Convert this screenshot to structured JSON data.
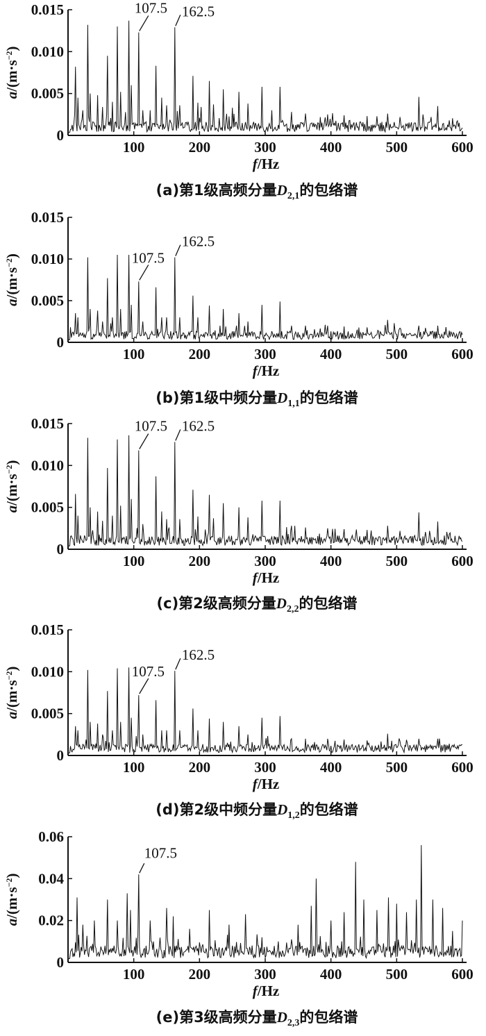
{
  "chart_data": [
    {
      "id": "a",
      "type": "line",
      "caption": "(a)第1级高频分量",
      "caption_symbol": "D",
      "caption_subscript": "2,1",
      "caption_suffix": "的包络谱",
      "xlabel_italic": "f",
      "xlabel_rest": "/Hz",
      "ylabel_italic": "a",
      "ylabel_rest": "/(m·s",
      "ylabel_sup": "−2",
      "ylabel_close": ")",
      "xlim": [
        0,
        600
      ],
      "ylim": [
        0,
        0.015
      ],
      "xticks": [
        "100",
        "200",
        "300",
        "400",
        "500",
        "600"
      ],
      "yticks": [
        "0",
        "0.005",
        "0.010",
        "0.015"
      ],
      "noise_base": 0.0012,
      "noise_amp": 0.0012,
      "peaks": [
        [
          11.5,
          0.0082
        ],
        [
          15,
          0.0045
        ],
        [
          22,
          0.003
        ],
        [
          30,
          0.0132
        ],
        [
          34,
          0.005
        ],
        [
          45,
          0.0048
        ],
        [
          53,
          0.0034
        ],
        [
          60,
          0.0095
        ],
        [
          67,
          0.004
        ],
        [
          75,
          0.013
        ],
        [
          80,
          0.0052
        ],
        [
          92,
          0.0137
        ],
        [
          96,
          0.006
        ],
        [
          107.5,
          0.0123
        ],
        [
          114,
          0.003
        ],
        [
          125,
          0.003
        ],
        [
          134,
          0.0083
        ],
        [
          142,
          0.0045
        ],
        [
          150,
          0.0036
        ],
        [
          162.5,
          0.0129
        ],
        [
          170,
          0.0036
        ],
        [
          190,
          0.0071
        ],
        [
          197,
          0.0039
        ],
        [
          203,
          0.0034
        ],
        [
          215,
          0.0065
        ],
        [
          221,
          0.0037
        ],
        [
          236,
          0.0055
        ],
        [
          250,
          0.0033
        ],
        [
          260,
          0.0052
        ],
        [
          274,
          0.0038
        ],
        [
          295,
          0.0058
        ],
        [
          310,
          0.003
        ],
        [
          323,
          0.0058
        ],
        [
          340,
          0.0028
        ],
        [
          361,
          0.0026
        ],
        [
          395,
          0.0025
        ],
        [
          420,
          0.0024
        ],
        [
          455,
          0.0023
        ],
        [
          486,
          0.0026
        ],
        [
          505,
          0.0022
        ],
        [
          534,
          0.0046
        ],
        [
          540,
          0.0025
        ],
        [
          563,
          0.0035
        ],
        [
          580,
          0.0018
        ],
        [
          595,
          0.0015
        ]
      ],
      "annotations": [
        {
          "x": 107.5,
          "text": "107.5"
        },
        {
          "x": 162.5,
          "text": "162.5"
        }
      ]
    },
    {
      "id": "b",
      "type": "line",
      "caption": "(b)第1级中频分量",
      "caption_symbol": "D",
      "caption_subscript": "1,1",
      "caption_suffix": "的包络谱",
      "xlabel_italic": "f",
      "xlabel_rest": "/Hz",
      "ylabel_italic": "a",
      "ylabel_rest": "/(m·s",
      "ylabel_sup": "−2",
      "ylabel_close": ")",
      "xlim": [
        0,
        600
      ],
      "ylim": [
        0,
        0.015
      ],
      "xticks": [
        "100",
        "200",
        "300",
        "400",
        "500",
        "600"
      ],
      "yticks": [
        "0",
        "0.005",
        "0.010",
        "0.015"
      ],
      "noise_base": 0.001,
      "noise_amp": 0.001,
      "peaks": [
        [
          11.5,
          0.0035
        ],
        [
          15,
          0.003
        ],
        [
          30,
          0.0102
        ],
        [
          34,
          0.004
        ],
        [
          45,
          0.0038
        ],
        [
          53,
          0.0025
        ],
        [
          60,
          0.0077
        ],
        [
          67,
          0.003
        ],
        [
          75,
          0.0105
        ],
        [
          80,
          0.004
        ],
        [
          92,
          0.0105
        ],
        [
          96,
          0.0045
        ],
        [
          107.5,
          0.0073
        ],
        [
          114,
          0.0025
        ],
        [
          134,
          0.0066
        ],
        [
          142,
          0.003
        ],
        [
          150,
          0.003
        ],
        [
          162.5,
          0.0102
        ],
        [
          170,
          0.003
        ],
        [
          190,
          0.0056
        ],
        [
          197,
          0.003
        ],
        [
          215,
          0.0044
        ],
        [
          236,
          0.004
        ],
        [
          260,
          0.0035
        ],
        [
          274,
          0.0025
        ],
        [
          295,
          0.0045
        ],
        [
          323,
          0.0049
        ],
        [
          340,
          0.002
        ],
        [
          361,
          0.002
        ],
        [
          395,
          0.002
        ],
        [
          420,
          0.0019
        ],
        [
          455,
          0.0018
        ],
        [
          486,
          0.0027
        ],
        [
          505,
          0.0017
        ],
        [
          534,
          0.002
        ],
        [
          563,
          0.002
        ],
        [
          580,
          0.0014
        ],
        [
          595,
          0.0012
        ]
      ],
      "annotations": [
        {
          "x": 107.5,
          "text": "107.5"
        },
        {
          "x": 162.5,
          "text": "162.5"
        }
      ]
    },
    {
      "id": "c",
      "type": "line",
      "caption": "(c)第2级高频分量",
      "caption_symbol": "D",
      "caption_subscript": "2,2",
      "caption_suffix": "的包络谱",
      "xlabel_italic": "f",
      "xlabel_rest": "/Hz",
      "ylabel_italic": "a",
      "ylabel_rest": "/(m·s",
      "ylabel_sup": "−2",
      "ylabel_close": ")",
      "xlim": [
        0,
        600
      ],
      "ylim": [
        0,
        0.015
      ],
      "xticks": [
        "100",
        "200",
        "300",
        "400",
        "500",
        "600"
      ],
      "yticks": [
        "0",
        "0.005",
        "0.010",
        "0.015"
      ],
      "noise_base": 0.0013,
      "noise_amp": 0.0012,
      "peaks": [
        [
          11.5,
          0.0066
        ],
        [
          15,
          0.004
        ],
        [
          30,
          0.0133
        ],
        [
          34,
          0.005
        ],
        [
          45,
          0.0045
        ],
        [
          53,
          0.0034
        ],
        [
          60,
          0.0097
        ],
        [
          67,
          0.004
        ],
        [
          75,
          0.0131
        ],
        [
          80,
          0.0052
        ],
        [
          92,
          0.0136
        ],
        [
          96,
          0.006
        ],
        [
          107.5,
          0.0118
        ],
        [
          114,
          0.003
        ],
        [
          134,
          0.0087
        ],
        [
          142,
          0.0045
        ],
        [
          150,
          0.0036
        ],
        [
          162.5,
          0.0128
        ],
        [
          170,
          0.0036
        ],
        [
          190,
          0.0071
        ],
        [
          197,
          0.0039
        ],
        [
          215,
          0.0065
        ],
        [
          221,
          0.0037
        ],
        [
          236,
          0.0055
        ],
        [
          260,
          0.005
        ],
        [
          274,
          0.0038
        ],
        [
          295,
          0.0058
        ],
        [
          323,
          0.0058
        ],
        [
          340,
          0.0028
        ],
        [
          361,
          0.0026
        ],
        [
          395,
          0.0025
        ],
        [
          420,
          0.0024
        ],
        [
          455,
          0.0023
        ],
        [
          486,
          0.0028
        ],
        [
          505,
          0.0022
        ],
        [
          534,
          0.0044
        ],
        [
          563,
          0.0033
        ],
        [
          580,
          0.0018
        ],
        [
          595,
          0.0016
        ]
      ],
      "annotations": [
        {
          "x": 107.5,
          "text": "107.5"
        },
        {
          "x": 162.5,
          "text": "162.5"
        }
      ]
    },
    {
      "id": "d",
      "type": "line",
      "caption": "(d)第2级中频分量",
      "caption_symbol": "D",
      "caption_subscript": "1,2",
      "caption_suffix": "的包络谱",
      "xlabel_italic": "f",
      "xlabel_rest": "/Hz",
      "ylabel_italic": "a",
      "ylabel_rest": "/(m·s",
      "ylabel_sup": "−2",
      "ylabel_close": ")",
      "xlim": [
        0,
        600
      ],
      "ylim": [
        0,
        0.015
      ],
      "xticks": [
        "100",
        "200",
        "300",
        "400",
        "500",
        "600"
      ],
      "yticks": [
        "0",
        "0.005",
        "0.010",
        "0.015"
      ],
      "noise_base": 0.001,
      "noise_amp": 0.001,
      "peaks": [
        [
          11.5,
          0.0035
        ],
        [
          15,
          0.003
        ],
        [
          30,
          0.0102
        ],
        [
          34,
          0.004
        ],
        [
          45,
          0.0038
        ],
        [
          53,
          0.0025
        ],
        [
          60,
          0.0077
        ],
        [
          67,
          0.003
        ],
        [
          75,
          0.0104
        ],
        [
          80,
          0.004
        ],
        [
          92,
          0.0105
        ],
        [
          96,
          0.0045
        ],
        [
          107.5,
          0.0072
        ],
        [
          114,
          0.0025
        ],
        [
          134,
          0.0066
        ],
        [
          142,
          0.003
        ],
        [
          150,
          0.003
        ],
        [
          162.5,
          0.0101
        ],
        [
          170,
          0.003
        ],
        [
          190,
          0.0056
        ],
        [
          197,
          0.003
        ],
        [
          215,
          0.0044
        ],
        [
          236,
          0.004
        ],
        [
          260,
          0.0035
        ],
        [
          274,
          0.0025
        ],
        [
          295,
          0.0045
        ],
        [
          323,
          0.0047
        ],
        [
          340,
          0.002
        ],
        [
          361,
          0.002
        ],
        [
          395,
          0.002
        ],
        [
          420,
          0.0019
        ],
        [
          455,
          0.0018
        ],
        [
          486,
          0.0026
        ],
        [
          505,
          0.0017
        ],
        [
          534,
          0.002
        ],
        [
          563,
          0.002
        ],
        [
          580,
          0.0014
        ],
        [
          595,
          0.0012
        ]
      ],
      "annotations": [
        {
          "x": 107.5,
          "text": "107.5"
        },
        {
          "x": 162.5,
          "text": "162.5"
        }
      ]
    },
    {
      "id": "e",
      "type": "line",
      "caption": "(e)第3级高频分量",
      "caption_symbol": "D",
      "caption_subscript": "2,3",
      "caption_suffix": "的包络谱",
      "xlabel_italic": "f",
      "xlabel_rest": "/Hz",
      "ylabel_italic": "a",
      "ylabel_rest": "/(m·s",
      "ylabel_sup": "−2",
      "ylabel_close": ")",
      "xlim": [
        0,
        600
      ],
      "ylim": [
        0,
        0.06
      ],
      "xticks": [
        "100",
        "200",
        "300",
        "400",
        "500",
        "600"
      ],
      "yticks": [
        "0",
        "0.02",
        "0.04",
        "0.06"
      ],
      "noise_base": 0.006,
      "noise_amp": 0.006,
      "peaks": [
        [
          14,
          0.031
        ],
        [
          22,
          0.018
        ],
        [
          40,
          0.02
        ],
        [
          60,
          0.03
        ],
        [
          75,
          0.02
        ],
        [
          90,
          0.033
        ],
        [
          95,
          0.025
        ],
        [
          107.5,
          0.042
        ],
        [
          125,
          0.02
        ],
        [
          150,
          0.026
        ],
        [
          160,
          0.022
        ],
        [
          185,
          0.016
        ],
        [
          215,
          0.025
        ],
        [
          245,
          0.018
        ],
        [
          270,
          0.023
        ],
        [
          295,
          0.012
        ],
        [
          320,
          0.01
        ],
        [
          350,
          0.018
        ],
        [
          370,
          0.027
        ],
        [
          378,
          0.04
        ],
        [
          400,
          0.02
        ],
        [
          420,
          0.024
        ],
        [
          437,
          0.048
        ],
        [
          450,
          0.03
        ],
        [
          470,
          0.025
        ],
        [
          488,
          0.031
        ],
        [
          500,
          0.028
        ],
        [
          515,
          0.024
        ],
        [
          530,
          0.03
        ],
        [
          537,
          0.056
        ],
        [
          555,
          0.03
        ],
        [
          570,
          0.026
        ],
        [
          585,
          0.015
        ],
        [
          600,
          0.02
        ]
      ],
      "annotations": [
        {
          "x": 107.5,
          "text": "107.5"
        }
      ]
    }
  ]
}
